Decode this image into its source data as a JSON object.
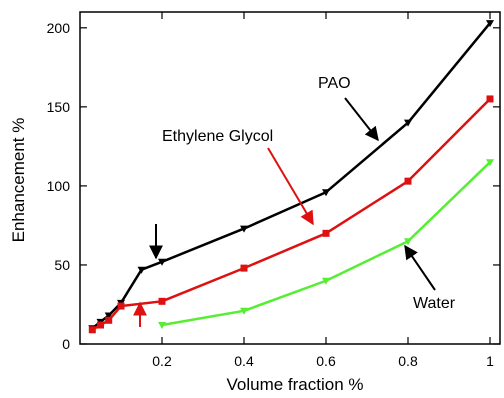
{
  "chart_data": {
    "type": "line",
    "xlabel": "Volume fraction %",
    "ylabel": "Enhancement  %",
    "xlim": [
      0,
      1.0
    ],
    "ylim": [
      0,
      210
    ],
    "xticks": [
      0.2,
      0.4,
      0.6,
      0.8,
      1
    ],
    "xtick_labels": [
      "0.2",
      "0.4",
      "0.6",
      "0.8",
      "1"
    ],
    "yticks": [
      0,
      50,
      100,
      150,
      200
    ],
    "ytick_labels": [
      "0",
      "50",
      "100",
      "150",
      "200"
    ],
    "grid": false,
    "series": [
      {
        "name": "PAO",
        "color": "#000000",
        "marker": "triangle-down",
        "x": [
          0.03,
          0.05,
          0.07,
          0.1,
          0.15,
          0.2,
          0.4,
          0.6,
          0.8,
          1.0
        ],
        "y": [
          10,
          14,
          18,
          26,
          47,
          52,
          73,
          96,
          140,
          203
        ]
      },
      {
        "name": "Ethylene Glycol",
        "color": "#dd1111",
        "marker": "square",
        "x": [
          0.03,
          0.05,
          0.07,
          0.1,
          0.2,
          0.4,
          0.6,
          0.8,
          1.0
        ],
        "y": [
          9,
          12,
          15,
          24,
          27,
          48,
          70,
          103,
          155
        ]
      },
      {
        "name": "Water",
        "color": "#55ee33",
        "marker": "triangle-down",
        "x": [
          0.2,
          0.4,
          0.6,
          0.8,
          1.0
        ],
        "y": [
          12,
          21,
          40,
          65,
          115
        ]
      }
    ],
    "annotations": [
      {
        "text": "PAO",
        "color": "#000000"
      },
      {
        "text": "Ethylene Glycol",
        "color": "#000000"
      },
      {
        "text": "Water",
        "color": "#000000"
      }
    ]
  }
}
